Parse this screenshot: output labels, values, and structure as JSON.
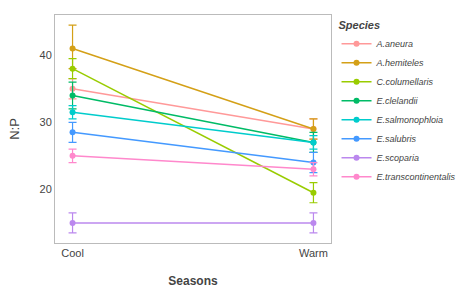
{
  "chart_data": {
    "type": "line",
    "xlabel": "Seasons",
    "ylabel": "N:P",
    "legend_title": "Species",
    "categories": [
      "Cool",
      "Warm"
    ],
    "series": [
      {
        "name": "A.aneura",
        "color": "#FF9999",
        "values": [
          35.0,
          29.0
        ],
        "error_low": [
          1.5,
          1.5
        ],
        "error_high": [
          1.5,
          1.5
        ]
      },
      {
        "name": "A.hemiteles",
        "color": "#D4A017",
        "values": [
          41.0,
          29.0
        ],
        "error_low": [
          3.0,
          1.5
        ],
        "error_high": [
          3.5,
          1.5
        ]
      },
      {
        "name": "C.columellaris",
        "color": "#99CC00",
        "values": [
          38.0,
          19.5
        ],
        "error_low": [
          1.5,
          1.5
        ],
        "error_high": [
          1.5,
          1.5
        ]
      },
      {
        "name": "E.clelandii",
        "color": "#00BB66",
        "values": [
          34.0,
          27.0
        ],
        "error_low": [
          2.0,
          1.5
        ],
        "error_high": [
          2.0,
          1.5
        ]
      },
      {
        "name": "E.salmonophloia",
        "color": "#00CCCC",
        "values": [
          31.5,
          27.0
        ],
        "error_low": [
          1.0,
          1.0
        ],
        "error_high": [
          1.0,
          1.0
        ]
      },
      {
        "name": "E.salubris",
        "color": "#4499FF",
        "values": [
          28.5,
          24.0
        ],
        "error_low": [
          1.5,
          1.5
        ],
        "error_high": [
          1.5,
          1.5
        ]
      },
      {
        "name": "E.scoparia",
        "color": "#BB88EE",
        "values": [
          15.0,
          15.0
        ],
        "error_low": [
          1.5,
          1.5
        ],
        "error_high": [
          1.5,
          1.5
        ]
      },
      {
        "name": "E.transcontinentalis",
        "color": "#FF88CC",
        "values": [
          25.0,
          23.0
        ],
        "error_low": [
          1.0,
          1.0
        ],
        "error_high": [
          1.0,
          1.0
        ]
      }
    ],
    "ylim": [
      12,
      46
    ],
    "yticks": [
      20,
      30,
      40
    ],
    "grid": false,
    "legend": "right",
    "marker": "circle"
  }
}
